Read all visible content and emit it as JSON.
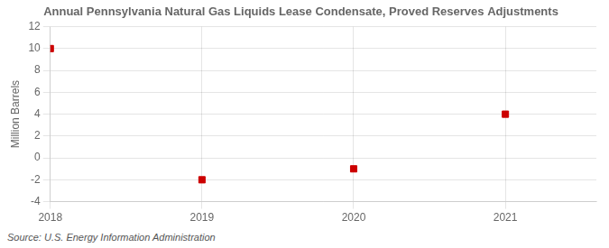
{
  "chart_data": {
    "type": "scatter",
    "title": "Annual Pennsylvania Natural Gas Liquids Lease Condensate, Proved Reserves Adjustments",
    "ylabel": "Million Barrels",
    "annotations": [
      "Source: U.S. Energy Information Administration"
    ],
    "x": [
      2018,
      2019,
      2020,
      2021
    ],
    "values": [
      10.0,
      -2.0,
      -1.0,
      4.0
    ],
    "color": "#cc0000",
    "marker": "square",
    "xlim": [
      2018,
      2021.6
    ],
    "xticks": [
      2018,
      2019,
      2020,
      2021
    ],
    "ylim": [
      -4,
      12
    ],
    "yticks": [
      -4,
      -2,
      0,
      2,
      4,
      6,
      8,
      10,
      12
    ],
    "grid": true
  }
}
